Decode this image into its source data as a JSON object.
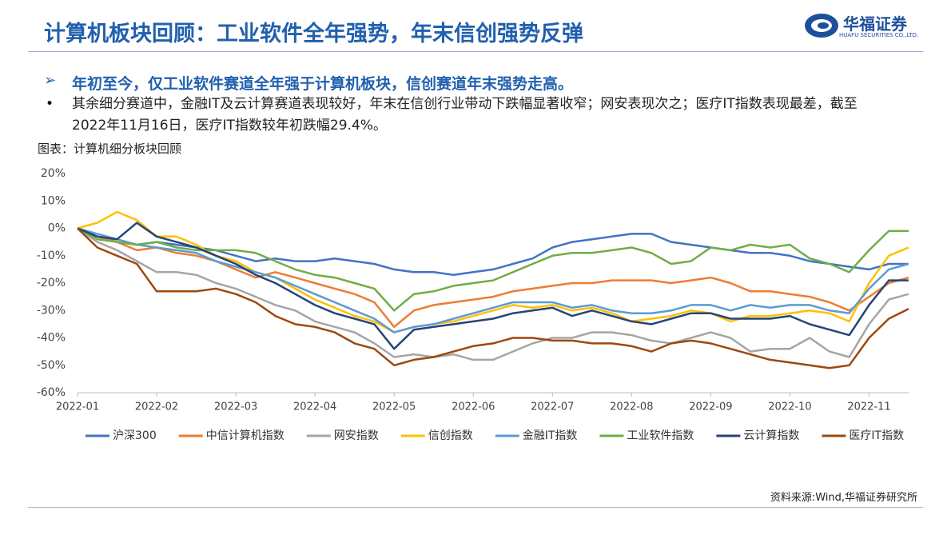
{
  "header": {
    "title": "计算机板块回顾：工业软件全年强势，年末信创强势反弹",
    "logo_name": "华福证券",
    "logo_sub": "HUAFU SECURITIES CO.,LTD."
  },
  "bullets": [
    "年初至今，仅工业软件赛道全年强于计算机板块，信创赛道年末强势走高。",
    "其余细分赛道中，金融IT及云计算赛道表现较好，年末在信创行业带动下跌幅显著收窄；网安表现次之；医疗IT指数表现最差，截至2022年11月16日，医疗IT指数较年初跌幅29.4%。"
  ],
  "chart_caption": "图表：计算机细分板块回顾",
  "source": "资料来源:Wind,华福证券研究所",
  "chart_data": {
    "type": "line",
    "categories": [
      "2022-01",
      null,
      null,
      null,
      "2022-02",
      null,
      null,
      null,
      "2022-03",
      null,
      null,
      null,
      "2022-04",
      null,
      null,
      null,
      "2022-05",
      null,
      null,
      null,
      "2022-06",
      null,
      null,
      null,
      "2022-07",
      null,
      null,
      null,
      "2022-08",
      null,
      null,
      null,
      "2022-09",
      null,
      null,
      null,
      "2022-10",
      null,
      null,
      null,
      "2022-11",
      null,
      null
    ],
    "ylim": [
      -60,
      20
    ],
    "yticks": [
      {
        "value": 20,
        "label": "20%"
      },
      {
        "value": 10,
        "label": "10%"
      },
      {
        "value": 0,
        "label": "0%"
      },
      {
        "value": -10,
        "label": "-10%"
      },
      {
        "value": -20,
        "label": "-20%"
      },
      {
        "value": -30,
        "label": "-30%"
      },
      {
        "value": -40,
        "label": "-40%"
      },
      {
        "value": -50,
        "label": "-50%"
      },
      {
        "value": -60,
        "label": "-60%"
      }
    ],
    "grid": false,
    "legend": "bottom",
    "series": [
      {
        "name": "沪深300",
        "color": "#4472c4",
        "values": [
          0,
          -3,
          -5,
          -6,
          -5,
          -6,
          -7,
          -8,
          -10,
          -12,
          -11,
          -12,
          -12,
          -11,
          -12,
          -13,
          -15,
          -16,
          -16,
          -17,
          -16,
          -15,
          -13,
          -11,
          -7,
          -5,
          -4,
          -3,
          -2,
          -2,
          -5,
          -6,
          -7,
          -8,
          -9,
          -9,
          -10,
          -12,
          -13,
          -14,
          -15,
          -13,
          -13
        ]
      },
      {
        "name": "中信计算机指数",
        "color": "#ed7d31",
        "values": [
          0,
          -3,
          -5,
          -8,
          -7,
          -9,
          -10,
          -12,
          -15,
          -18,
          -16,
          -18,
          -20,
          -22,
          -24,
          -27,
          -36,
          -30,
          -28,
          -27,
          -26,
          -25,
          -23,
          -22,
          -21,
          -20,
          -20,
          -19,
          -19,
          -19,
          -20,
          -19,
          -18,
          -20,
          -23,
          -23,
          -24,
          -25,
          -27,
          -30,
          -25,
          -20,
          -18
        ]
      },
      {
        "name": "网安指数",
        "color": "#a5a5a5",
        "values": [
          0,
          -5,
          -8,
          -12,
          -16,
          -16,
          -17,
          -20,
          -22,
          -25,
          -28,
          -30,
          -34,
          -36,
          -38,
          -42,
          -47,
          -46,
          -47,
          -46,
          -48,
          -48,
          -45,
          -42,
          -40,
          -40,
          -38,
          -38,
          -39,
          -41,
          -42,
          -40,
          -38,
          -40,
          -45,
          -44,
          -44,
          -40,
          -45,
          -47,
          -35,
          -26,
          -24
        ]
      },
      {
        "name": "信创指数",
        "color": "#ffc000",
        "values": [
          0,
          2,
          6,
          3,
          -3,
          -3,
          -6,
          -10,
          -12,
          -16,
          -18,
          -22,
          -26,
          -29,
          -32,
          -34,
          -38,
          -36,
          -35,
          -34,
          -32,
          -30,
          -28,
          -29,
          -28,
          -30,
          -29,
          -31,
          -34,
          -33,
          -32,
          -30,
          -31,
          -34,
          -32,
          -32,
          -31,
          -30,
          -31,
          -34,
          -20,
          -10,
          -7
        ]
      },
      {
        "name": "金融IT指数",
        "color": "#5b9bd5",
        "values": [
          0,
          -2,
          -4,
          -6,
          -7,
          -8,
          -9,
          -12,
          -14,
          -16,
          -18,
          -21,
          -24,
          -27,
          -30,
          -33,
          -38,
          -36,
          -35,
          -33,
          -31,
          -29,
          -27,
          -27,
          -27,
          -29,
          -28,
          -30,
          -31,
          -31,
          -30,
          -28,
          -28,
          -30,
          -28,
          -29,
          -28,
          -28,
          -30,
          -31,
          -22,
          -15,
          -13
        ]
      },
      {
        "name": "工业软件指数",
        "color": "#70ad47",
        "values": [
          0,
          -4,
          -5,
          -6,
          -5,
          -7,
          -8,
          -8,
          -8,
          -9,
          -12,
          -15,
          -17,
          -18,
          -20,
          -22,
          -30,
          -24,
          -23,
          -21,
          -20,
          -19,
          -16,
          -13,
          -10,
          -9,
          -9,
          -8,
          -7,
          -9,
          -13,
          -12,
          -7,
          -8,
          -6,
          -7,
          -6,
          -11,
          -13,
          -16,
          -8,
          -1,
          -1
        ]
      },
      {
        "name": "云计算指数",
        "color": "#264478",
        "values": [
          0,
          -3,
          -4,
          2,
          -3,
          -5,
          -7,
          -10,
          -13,
          -17,
          -20,
          -24,
          -28,
          -31,
          -33,
          -35,
          -44,
          -37,
          -36,
          -35,
          -34,
          -33,
          -31,
          -30,
          -29,
          -32,
          -30,
          -32,
          -34,
          -35,
          -33,
          -31,
          -31,
          -33,
          -33,
          -33,
          -32,
          -35,
          -37,
          -39,
          -28,
          -19,
          -19
        ]
      },
      {
        "name": "医疗IT指数",
        "color": "#9e480e",
        "values": [
          0,
          -7,
          -10,
          -13,
          -23,
          -23,
          -23,
          -22,
          -24,
          -27,
          -32,
          -35,
          -36,
          -38,
          -42,
          -44,
          -50,
          -48,
          -47,
          -45,
          -43,
          -42,
          -40,
          -40,
          -41,
          -41,
          -42,
          -42,
          -43,
          -45,
          -42,
          -41,
          -42,
          -44,
          -46,
          -48,
          -49,
          -50,
          -51,
          -50,
          -40,
          -33,
          -29.4
        ]
      }
    ]
  }
}
